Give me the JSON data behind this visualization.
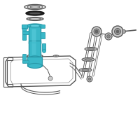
{
  "bg_color": "#ffffff",
  "teal": "#3ab8c8",
  "teal_dark": "#2898a8",
  "teal_light": "#60d0e0",
  "lc": "#555555",
  "lc_dark": "#333333",
  "lc_light": "#888888",
  "fig_width": 2.0,
  "fig_height": 2.0,
  "dpi": 100
}
